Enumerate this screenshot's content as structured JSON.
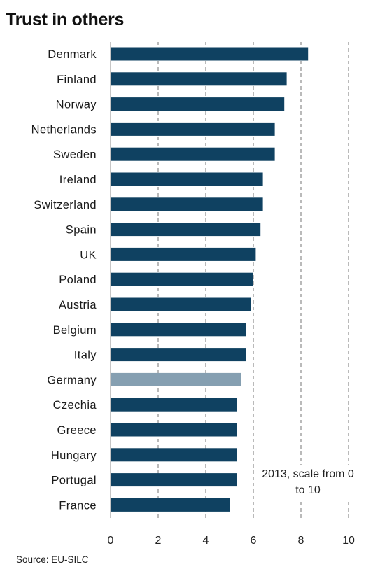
{
  "chart_data": {
    "type": "bar",
    "orientation": "horizontal",
    "title": "Trust in others",
    "categories": [
      "Denmark",
      "Finland",
      "Norway",
      "Netherlands",
      "Sweden",
      "Ireland",
      "Switzerland",
      "Spain",
      "UK",
      "Poland",
      "Austria",
      "Belgium",
      "Italy",
      "Germany",
      "Czechia",
      "Greece",
      "Hungary",
      "Portugal",
      "France"
    ],
    "values": [
      8.3,
      7.4,
      7.3,
      6.9,
      6.9,
      6.4,
      6.4,
      6.3,
      6.1,
      6.0,
      5.9,
      5.7,
      5.7,
      5.5,
      5.3,
      5.3,
      5.3,
      5.3,
      5.0
    ],
    "highlight": "Germany",
    "xlim": [
      0,
      10
    ],
    "xticks": [
      0,
      2,
      4,
      6,
      8,
      10
    ],
    "grid": "vertical-dashed",
    "annotation": "2013, scale from 0 to 10",
    "colors": {
      "bar": "#0f4161",
      "highlight": "#859fb1",
      "grid": "#8c8c8c"
    }
  },
  "source": "Source: EU-SILC"
}
